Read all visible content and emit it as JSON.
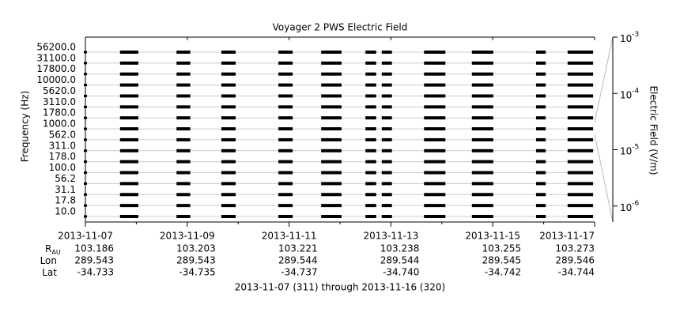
{
  "chart_data": {
    "type": "channel-stack",
    "title": "Voyager 2 PWS Electric Field",
    "ylabel": "Frequency (Hz)",
    "y2label": "Electric Field (V/m)",
    "channels": [
      "56200.0",
      "31100.0",
      "17800.0",
      "10000.0",
      "5620.0",
      "3110.0",
      "1780.0",
      "1000.0",
      "562.0",
      "311.0",
      "178.0",
      "100.0",
      "56.2",
      "31.1",
      "17.8",
      "10.0"
    ],
    "xlim": [
      311,
      321
    ],
    "xticks": [
      {
        "value": 311,
        "label": "2013-11-07"
      },
      {
        "value": 313,
        "label": "2013-11-09"
      },
      {
        "value": 315,
        "label": "2013-11-11"
      },
      {
        "value": 317,
        "label": "2013-11-13"
      },
      {
        "value": 319,
        "label": "2013-11-15"
      },
      {
        "value": 321,
        "label": "2013-11-17"
      }
    ],
    "xminorticks": [
      312,
      314,
      316,
      318,
      320
    ],
    "segments": [
      [
        311.68,
        312.04
      ],
      [
        312.79,
        313.06
      ],
      [
        313.67,
        313.95
      ],
      [
        314.79,
        315.07
      ],
      [
        315.63,
        316.03
      ],
      [
        316.5,
        316.71
      ],
      [
        316.82,
        317.02
      ],
      [
        317.65,
        318.07
      ],
      [
        318.59,
        319.01
      ],
      [
        319.85,
        320.04
      ],
      [
        320.47,
        320.97
      ]
    ],
    "color": "#000000",
    "grid": true,
    "y2scale": "log",
    "y2lim": [
      5.2e-07,
      0.001
    ],
    "y2ticks": [
      {
        "value": 0.001,
        "label": "10",
        "exponent": "-3"
      },
      {
        "value": 0.0001,
        "label": "10",
        "exponent": "-4"
      },
      {
        "value": 1e-05,
        "label": "10",
        "exponent": "-5"
      },
      {
        "value": 1e-06,
        "label": "10",
        "exponent": "-6"
      }
    ],
    "ephemeris": [
      {
        "label": "R",
        "sub": "AU",
        "values": [
          "103.186",
          "103.203",
          "103.221",
          "103.238",
          "103.255",
          "103.273"
        ]
      },
      {
        "label": "Lon",
        "values": [
          "289.543",
          "289.543",
          "289.544",
          "289.544",
          "289.545",
          "289.546"
        ]
      },
      {
        "label": "Lat",
        "values": [
          "-34.733",
          "-34.735",
          "-34.737",
          "-34.740",
          "-34.742",
          "-34.744"
        ]
      }
    ],
    "caption": "2013-11-07 (311) through 2013-11-16 (320)"
  }
}
